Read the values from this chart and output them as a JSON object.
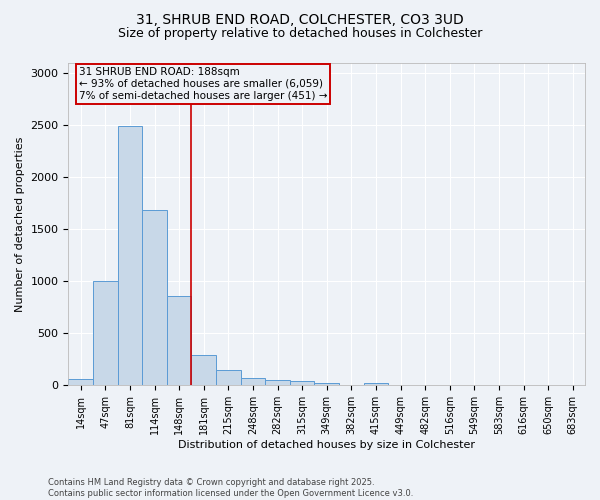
{
  "title_line1": "31, SHRUB END ROAD, COLCHESTER, CO3 3UD",
  "title_line2": "Size of property relative to detached houses in Colchester",
  "xlabel": "Distribution of detached houses by size in Colchester",
  "ylabel": "Number of detached properties",
  "categories": [
    "14sqm",
    "47sqm",
    "81sqm",
    "114sqm",
    "148sqm",
    "181sqm",
    "215sqm",
    "248sqm",
    "282sqm",
    "315sqm",
    "349sqm",
    "382sqm",
    "415sqm",
    "449sqm",
    "482sqm",
    "516sqm",
    "549sqm",
    "583sqm",
    "616sqm",
    "650sqm",
    "683sqm"
  ],
  "values": [
    65,
    1000,
    2490,
    1680,
    860,
    290,
    145,
    70,
    50,
    40,
    25,
    0,
    20,
    0,
    0,
    0,
    0,
    0,
    0,
    0,
    0
  ],
  "bar_color": "#c8d8e8",
  "bar_edgecolor": "#5b9bd5",
  "vline_index": 5,
  "vline_color": "#cc0000",
  "annotation_line1": "31 SHRUB END ROAD: 188sqm",
  "annotation_line2": "← 93% of detached houses are smaller (6,059)",
  "annotation_line3": "7% of semi-detached houses are larger (451) →",
  "box_edgecolor": "#cc0000",
  "ylim": [
    0,
    3100
  ],
  "yticks": [
    0,
    500,
    1000,
    1500,
    2000,
    2500,
    3000
  ],
  "footnote_line1": "Contains HM Land Registry data © Crown copyright and database right 2025.",
  "footnote_line2": "Contains public sector information licensed under the Open Government Licence v3.0.",
  "background_color": "#eef2f7",
  "grid_color": "#ffffff",
  "title_fontsize": 10,
  "subtitle_fontsize": 9,
  "tick_fontsize": 7,
  "ylabel_fontsize": 8,
  "xlabel_fontsize": 8,
  "annot_fontsize": 7.5,
  "footnote_fontsize": 6
}
